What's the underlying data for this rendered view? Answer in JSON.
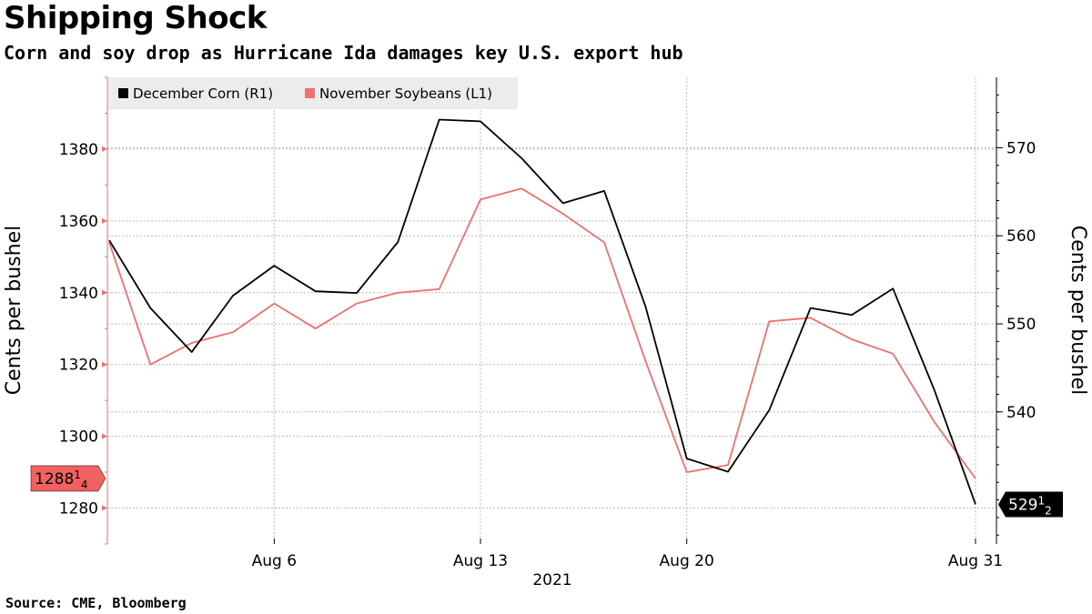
{
  "header": {
    "title": "Shipping Shock",
    "subtitle": "Corn and soy drop as Hurricane Ida damages key U.S. export hub"
  },
  "footer": {
    "source": "Source: CME, Bloomberg"
  },
  "chart_data": {
    "type": "line",
    "xlabel": "2021",
    "x_ticks": [
      {
        "label": "Aug 6",
        "index": 4
      },
      {
        "label": "Aug 13",
        "index": 9
      },
      {
        "label": "Aug 20",
        "index": 14
      },
      {
        "label": "Aug 31",
        "index": 21
      }
    ],
    "left_axis": {
      "label": "Cents per bushel",
      "ylim": [
        1270,
        1400
      ],
      "ticks": [
        "1280",
        "1300",
        "1320",
        "1340",
        "1360",
        "1380"
      ]
    },
    "right_axis": {
      "label": "Cents per bushel",
      "ylim": [
        525,
        578
      ],
      "ticks": [
        "540",
        "550",
        "560",
        "570"
      ]
    },
    "dates": [
      "Aug 2",
      "Aug 3",
      "Aug 4",
      "Aug 5",
      "Aug 6",
      "Aug 9",
      "Aug 10",
      "Aug 11",
      "Aug 12",
      "Aug 13",
      "Aug 16",
      "Aug 17",
      "Aug 18",
      "Aug 19",
      "Aug 20",
      "Aug 23",
      "Aug 24",
      "Aug 25",
      "Aug 26",
      "Aug 27",
      "Aug 30",
      "Aug 31"
    ],
    "series": [
      {
        "name": "December Corn (R1)",
        "axis": "right",
        "color": "#000000",
        "values": [
          559.5,
          551.8,
          546.8,
          553.2,
          556.6,
          553.7,
          553.5,
          559.3,
          573.2,
          573.0,
          568.8,
          563.7,
          565.1,
          552.0,
          534.7,
          533.2,
          540.2,
          551.8,
          551.0,
          554.0,
          542.5,
          529.5
        ],
        "last_label": "529",
        "last_frac_num": "1",
        "last_frac_den": "2"
      },
      {
        "name": "November Soybeans (L1)",
        "axis": "left",
        "color": "#f07070",
        "values": [
          1354,
          1320,
          1326,
          1329,
          1337,
          1330,
          1337,
          1340,
          1341,
          1366,
          1369,
          1362,
          1354,
          1321,
          1290,
          1292,
          1332,
          1333,
          1327,
          1323,
          1304,
          1288.25
        ],
        "last_label": "1288",
        "last_frac_num": "1",
        "last_frac_den": "4"
      }
    ]
  }
}
